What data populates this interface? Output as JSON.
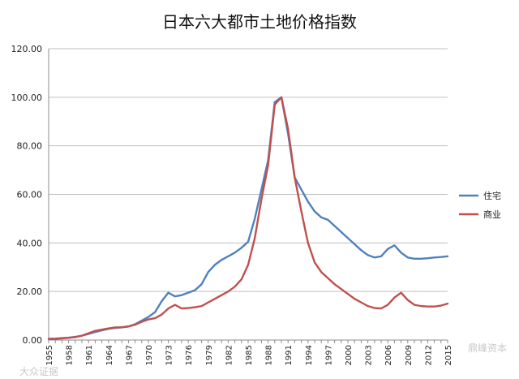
{
  "chart_data": {
    "type": "line",
    "title": "日本六大都市土地价格指数",
    "xlabel": "",
    "ylabel": "",
    "ylim": [
      0,
      120
    ],
    "yticks": [
      "0.00",
      "20.00",
      "40.00",
      "60.00",
      "80.00",
      "100.00",
      "120.00"
    ],
    "xtick_labels": [
      "1955",
      "1958",
      "1961",
      "1964",
      "1967",
      "1970",
      "1973",
      "1976",
      "1979",
      "1982",
      "1985",
      "1988",
      "1991",
      "1994",
      "1997",
      "2000",
      "2003",
      "2006",
      "2009",
      "2012",
      "2015"
    ],
    "grid": "horizontal",
    "legend": "right",
    "x": [
      1955,
      1956,
      1957,
      1958,
      1959,
      1960,
      1961,
      1962,
      1963,
      1964,
      1965,
      1966,
      1967,
      1968,
      1969,
      1970,
      1971,
      1972,
      1973,
      1974,
      1975,
      1976,
      1977,
      1978,
      1979,
      1980,
      1981,
      1982,
      1983,
      1984,
      1985,
      1986,
      1987,
      1988,
      1989,
      1990,
      1991,
      1992,
      1993,
      1994,
      1995,
      1996,
      1997,
      1998,
      1999,
      2000,
      2001,
      2002,
      2003,
      2004,
      2005,
      2006,
      2007,
      2008,
      2009,
      2010,
      2011,
      2012,
      2013,
      2014,
      2015
    ],
    "series": [
      {
        "name": "住宅",
        "color": "#4f81bd",
        "values": [
          0.5,
          0.6,
          0.8,
          1.0,
          1.3,
          1.8,
          2.5,
          3.3,
          4.0,
          4.6,
          5.0,
          5.2,
          5.6,
          6.5,
          8.0,
          9.5,
          11.5,
          16.0,
          19.5,
          18.0,
          18.5,
          19.5,
          20.5,
          23.0,
          28.0,
          31.0,
          33.0,
          34.5,
          36.0,
          38.0,
          40.5,
          50.0,
          62.0,
          74.0,
          98.0,
          100.0,
          85.0,
          67.0,
          62.0,
          57.0,
          53.0,
          50.5,
          49.5,
          47.0,
          44.5,
          42.0,
          39.5,
          37.0,
          35.0,
          34.0,
          34.5,
          37.5,
          39.0,
          36.0,
          34.0,
          33.5,
          33.5,
          33.7,
          34.0,
          34.2,
          34.5
        ]
      },
      {
        "name": "商业",
        "color": "#c0504d",
        "values": [
          0.4,
          0.5,
          0.7,
          0.9,
          1.2,
          1.8,
          2.8,
          3.8,
          4.3,
          4.8,
          5.2,
          5.3,
          5.6,
          6.3,
          7.5,
          8.5,
          9.0,
          10.5,
          13.0,
          14.5,
          13.0,
          13.2,
          13.5,
          14.0,
          15.5,
          17.0,
          18.5,
          20.0,
          22.0,
          25.0,
          31.0,
          42.0,
          58.0,
          72.0,
          97.0,
          100.0,
          87.0,
          67.0,
          53.0,
          40.0,
          32.0,
          28.0,
          25.5,
          23.0,
          21.0,
          19.0,
          17.0,
          15.5,
          14.0,
          13.2,
          13.0,
          14.5,
          17.5,
          19.5,
          16.5,
          14.5,
          14.0,
          13.8,
          13.8,
          14.2,
          15.0
        ]
      }
    ]
  },
  "watermark": {
    "left": "大众证据",
    "right": "鼎峰资本"
  }
}
